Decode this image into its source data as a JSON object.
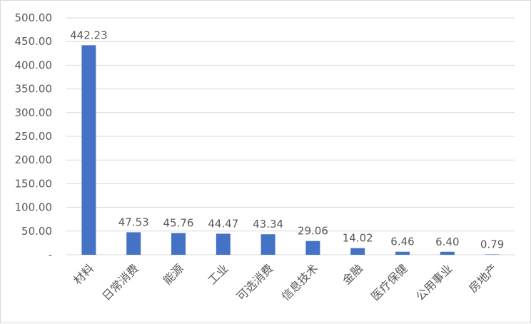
{
  "chart_data": {
    "type": "bar",
    "title": "",
    "xlabel": "",
    "ylabel": "",
    "categories": [
      "材料",
      "日常消费",
      "能源",
      "工业",
      "可选消费",
      "信息技术",
      "金融",
      "医疗保健",
      "公用事业",
      "房地产"
    ],
    "values": [
      442.23,
      47.53,
      45.76,
      44.47,
      43.34,
      29.06,
      14.02,
      6.46,
      6.4,
      0.79
    ],
    "data_labels": [
      "442.23",
      "47.53",
      "45.76",
      "44.47",
      "43.34",
      "29.06",
      "14.02",
      "6.46",
      "6.40",
      "0.79"
    ],
    "ylim": [
      0,
      500
    ],
    "yticks": [
      0,
      50,
      100,
      150,
      200,
      250,
      300,
      350,
      400,
      450,
      500
    ],
    "ytick_labels": [
      "-",
      "50.00",
      "100.00",
      "150.00",
      "200.00",
      "250.00",
      "300.00",
      "350.00",
      "400.00",
      "450.00",
      "500.00"
    ],
    "grid": true,
    "legend": "none",
    "bar_color": "#4472C4"
  }
}
